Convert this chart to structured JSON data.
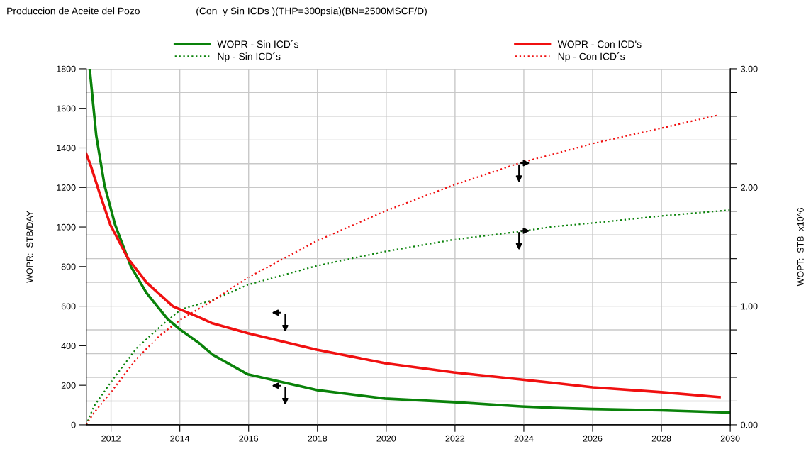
{
  "chart_data": {
    "type": "line",
    "title": "Produccion de Aceite del Pozo",
    "subtitle": "(Con  y Sin ICDs )(THP=300psia)(BN=2500MSCF/D)",
    "ylabel": "WOPR:  STB/DAY",
    "y2label": "WOPT:  STB  x10^6",
    "xlim": [
      2011.28,
      2030
    ],
    "xticks": [
      2012,
      2014,
      2016,
      2018,
      2020,
      2022,
      2024,
      2026,
      2028,
      2030
    ],
    "ylim": [
      0,
      1800
    ],
    "yticks": [
      0,
      200,
      400,
      600,
      800,
      1000,
      1200,
      1400,
      1600,
      1800
    ],
    "y2lim": [
      0,
      3
    ],
    "y2ticks": [
      {
        "value": 0,
        "label": "0.00"
      },
      {
        "value": 0.2,
        "label": null
      },
      {
        "value": 0.4,
        "label": null
      },
      {
        "value": 0.6,
        "label": null
      },
      {
        "value": 0.8,
        "label": null
      },
      {
        "value": 1,
        "label": "1.00"
      },
      {
        "value": 1.2,
        "label": null
      },
      {
        "value": 1.4,
        "label": null
      },
      {
        "value": 1.6,
        "label": null
      },
      {
        "value": 1.8,
        "label": null
      },
      {
        "value": 2,
        "label": "2.00"
      },
      {
        "value": 2.2,
        "label": null
      },
      {
        "value": 2.4,
        "label": null
      },
      {
        "value": 2.6,
        "label": null
      },
      {
        "value": 2.8,
        "label": null
      },
      {
        "value": 3,
        "label": "3.00"
      }
    ],
    "grid": true,
    "legend": "top",
    "marker": "none",
    "series": [
      {
        "name": "WOPR - Sin ICD´s",
        "color": "#0a820a",
        "line_style": "solid",
        "x": [
          2011.38,
          2011.57,
          2011.81,
          2012.12,
          2012.58,
          2013.03,
          2013.65,
          2014.02,
          2014.54,
          2014.95,
          2015.98,
          2017.98,
          2019.96,
          2021.96,
          2023.92,
          2024.85,
          2026,
          2028,
          2030
        ],
        "values": [
          1800,
          1463,
          1212,
          1011,
          800,
          667,
          534,
          480,
          416,
          355,
          255,
          176,
          133,
          115,
          93,
          86,
          80,
          73,
          62
        ]
      },
      {
        "name": "WOPR - Con ICD's",
        "color": "#f01010",
        "line_style": "solid",
        "x": [
          2011.28,
          2011.4,
          2011.67,
          2011.98,
          2012.5,
          2013.03,
          2013.8,
          2014.54,
          2014.95,
          2015.98,
          2017.98,
          2019.96,
          2021.96,
          2023.92,
          2024.85,
          2026,
          2028,
          2029.69
        ],
        "values": [
          1370,
          1316,
          1170,
          1011,
          839,
          720,
          599,
          545,
          513,
          463,
          380,
          312,
          265,
          229,
          212,
          190,
          165,
          140
        ]
      },
      {
        "name": "Np - Sin ICD´s",
        "color": "#0a820a",
        "line_style": "dotted",
        "axis": "y2",
        "x": [
          2011.28,
          2011.5,
          2012.04,
          2012.74,
          2013.42,
          2014.04,
          2014.95,
          2015.98,
          2017.98,
          2019.96,
          2021.96,
          2023.92,
          2024.85,
          2026,
          2028,
          2030
        ],
        "values": [
          0,
          0.155,
          0.377,
          0.645,
          0.825,
          0.974,
          1.05,
          1.18,
          1.34,
          1.46,
          1.56,
          1.63,
          1.67,
          1.7,
          1.76,
          1.81
        ]
      },
      {
        "name": "Np - Con ICD´s",
        "color": "#f01010",
        "line_style": "dotted",
        "axis": "y2",
        "x": [
          2011.28,
          2011.5,
          2012.04,
          2012.74,
          2013.42,
          2014.04,
          2014.95,
          2015.98,
          2017.98,
          2019.96,
          2021.96,
          2023.92,
          2024.85,
          2026,
          2028,
          2029.65
        ],
        "values": [
          0,
          0.1,
          0.29,
          0.556,
          0.753,
          0.89,
          1.046,
          1.24,
          1.55,
          1.8,
          2.02,
          2.21,
          2.28,
          2.37,
          2.5,
          2.61
        ]
      }
    ]
  }
}
